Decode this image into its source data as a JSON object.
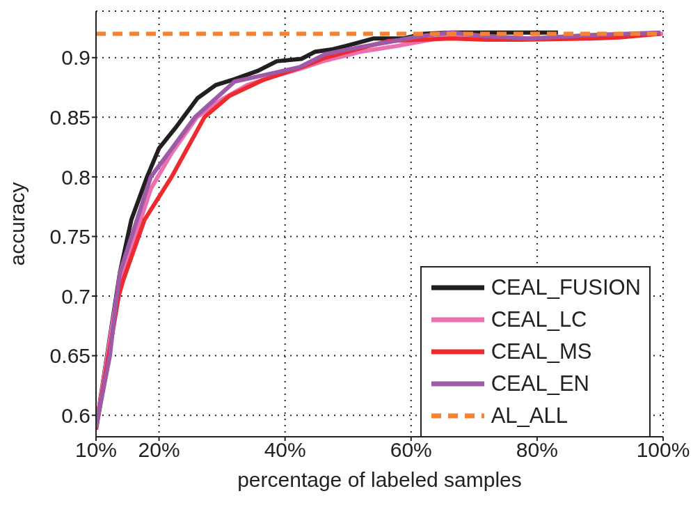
{
  "chart_data": {
    "type": "line",
    "xlabel": "percentage of labeled samples",
    "ylabel": "accuracy",
    "xlim": [
      10,
      100
    ],
    "ylim": [
      0.582,
      0.939
    ],
    "xticks": [
      {
        "value": 10,
        "label": "10%"
      },
      {
        "value": 20,
        "label": "20%"
      },
      {
        "value": 40,
        "label": "40%"
      },
      {
        "value": 60,
        "label": "60%"
      },
      {
        "value": 80,
        "label": "80%"
      },
      {
        "value": 100,
        "label": "100%"
      }
    ],
    "yticks": [
      0.6,
      0.65,
      0.7,
      0.75,
      0.8,
      0.85,
      0.9
    ],
    "grid": true,
    "legend": "bottom right",
    "marker": "none",
    "series": [
      {
        "name": "CEAL_FUSION",
        "color": "#231f20",
        "line_style": "solid",
        "x": [
          10,
          13.8,
          15.6,
          18.1,
          20,
          22.6,
          26.1,
          29,
          32,
          35.7,
          38.7,
          42.6,
          44.8,
          47.6,
          49.8,
          54,
          58.7,
          62,
          66.4,
          75,
          83.3
        ],
        "values": [
          0.59,
          0.72,
          0.764,
          0.8,
          0.824,
          0.841,
          0.866,
          0.877,
          0.882,
          0.889,
          0.897,
          0.899,
          0.905,
          0.907,
          0.91,
          0.916,
          0.916,
          0.92,
          0.921,
          0.921,
          0.921
        ]
      },
      {
        "name": "CEAL_LC",
        "color": "#ec6fb0",
        "line_style": "solid",
        "x": [
          10,
          13.3,
          14,
          18.7,
          22,
          26,
          30,
          34,
          38,
          42,
          46,
          52,
          58,
          66,
          72,
          80,
          90,
          100
        ],
        "values": [
          0.59,
          0.7,
          0.715,
          0.79,
          0.82,
          0.85,
          0.865,
          0.877,
          0.884,
          0.89,
          0.897,
          0.905,
          0.91,
          0.918,
          0.917,
          0.916,
          0.918,
          0.92
        ]
      },
      {
        "name": "CEAL_MS",
        "color": "#ed2a2e",
        "line_style": "solid",
        "x": [
          10,
          12,
          13.6,
          14.3,
          17.7,
          22,
          27.2,
          31.2,
          36.4,
          42.6,
          46.4,
          52,
          56.4,
          66.4,
          72,
          77.5,
          88.7,
          93,
          99.6
        ],
        "values": [
          0.588,
          0.65,
          0.7,
          0.713,
          0.764,
          0.8,
          0.85,
          0.868,
          0.881,
          0.892,
          0.9,
          0.908,
          0.914,
          0.916,
          0.915,
          0.915,
          0.916,
          0.917,
          0.92
        ]
      },
      {
        "name": "CEAL_EN",
        "color": "#9e59a7",
        "line_style": "solid",
        "x": [
          10,
          12.2,
          13.3,
          13.8,
          18.7,
          25.7,
          32,
          36.4,
          42.3,
          46.4,
          52,
          56.4,
          61.4,
          66.4,
          72,
          78.7,
          88.7,
          99.6
        ],
        "values": [
          0.59,
          0.65,
          0.7,
          0.72,
          0.8,
          0.85,
          0.88,
          0.885,
          0.892,
          0.903,
          0.909,
          0.913,
          0.918,
          0.921,
          0.918,
          0.916,
          0.919,
          0.921
        ]
      },
      {
        "name": "AL_ALL",
        "color": "#f58333",
        "line_style": "dashed",
        "x": [
          10,
          100
        ],
        "values": [
          0.92,
          0.92
        ]
      }
    ]
  }
}
